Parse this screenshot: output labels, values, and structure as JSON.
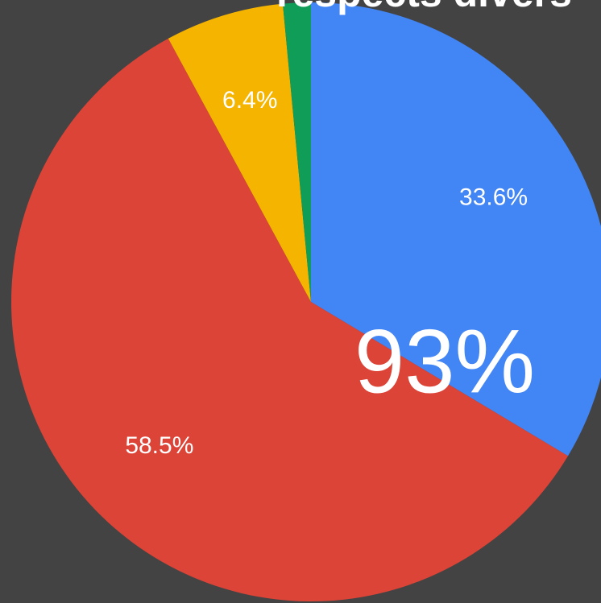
{
  "chart_data": {
    "type": "pie",
    "title": "respects divers",
    "values": [
      33.6,
      58.5,
      6.4,
      1.5
    ],
    "value_labels": [
      "33.6%",
      "58.5%",
      "6.4%",
      null
    ],
    "colors": [
      "#4285f4",
      "#db4437",
      "#f4b400",
      "#0f9d58"
    ],
    "annotation": "93%"
  }
}
